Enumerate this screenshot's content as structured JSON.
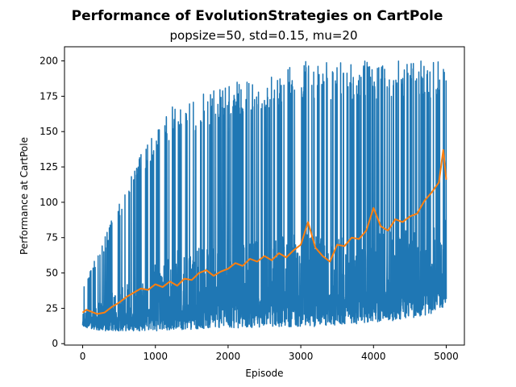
{
  "chart_data": {
    "type": "line",
    "title": "Performance of EvolutionStrategies on CartPole",
    "subtitle": "popsize=50, std=0.15, mu=20",
    "xlabel": "Episode",
    "ylabel": "Performance at CartPole",
    "xlim": [
      -250,
      5250
    ],
    "ylim": [
      -1,
      210
    ],
    "xticks": [
      0,
      1000,
      2000,
      3000,
      4000,
      5000
    ],
    "yticks": [
      0,
      25,
      50,
      75,
      100,
      125,
      150,
      175,
      200
    ],
    "grid": false,
    "series": [
      {
        "color": "#1f77b4",
        "style": "raw",
        "x": [
          0,
          250,
          500,
          750,
          1000,
          1250,
          1500,
          1750,
          2000,
          2250,
          2500,
          2750,
          3000,
          3250,
          3500,
          3750,
          4000,
          4250,
          4500,
          4750,
          5000
        ],
        "low": [
          12,
          9,
          9,
          9,
          9,
          10,
          10,
          11,
          11,
          11,
          12,
          12,
          12,
          12,
          13,
          14,
          15,
          16,
          18,
          20,
          27
        ],
        "high": [
          40,
          70,
          100,
          130,
          150,
          170,
          170,
          180,
          185,
          185,
          190,
          195,
          200,
          200,
          200,
          200,
          200,
          200,
          200,
          200,
          200
        ]
      },
      {
        "color": "#ff7f0e",
        "style": "smoothed",
        "x": [
          0,
          50,
          100,
          200,
          300,
          400,
          500,
          600,
          700,
          800,
          900,
          1000,
          1100,
          1200,
          1300,
          1400,
          1500,
          1600,
          1700,
          1800,
          1900,
          2000,
          2100,
          2200,
          2300,
          2400,
          2500,
          2600,
          2700,
          2800,
          2900,
          3000,
          3100,
          3200,
          3300,
          3400,
          3500,
          3600,
          3700,
          3800,
          3900,
          4000,
          4100,
          4200,
          4300,
          4400,
          4500,
          4600,
          4700,
          4800,
          4900,
          4960,
          5000
        ],
        "values": [
          22,
          24,
          23,
          21,
          22,
          26,
          29,
          33,
          36,
          39,
          38,
          42,
          40,
          44,
          41,
          46,
          45,
          50,
          52,
          48,
          51,
          53,
          57,
          55,
          60,
          58,
          62,
          59,
          64,
          61,
          66,
          70,
          86,
          68,
          62,
          58,
          70,
          69,
          75,
          74,
          80,
          96,
          83,
          80,
          88,
          86,
          90,
          92,
          101,
          107,
          114,
          137,
          116
        ]
      }
    ]
  }
}
